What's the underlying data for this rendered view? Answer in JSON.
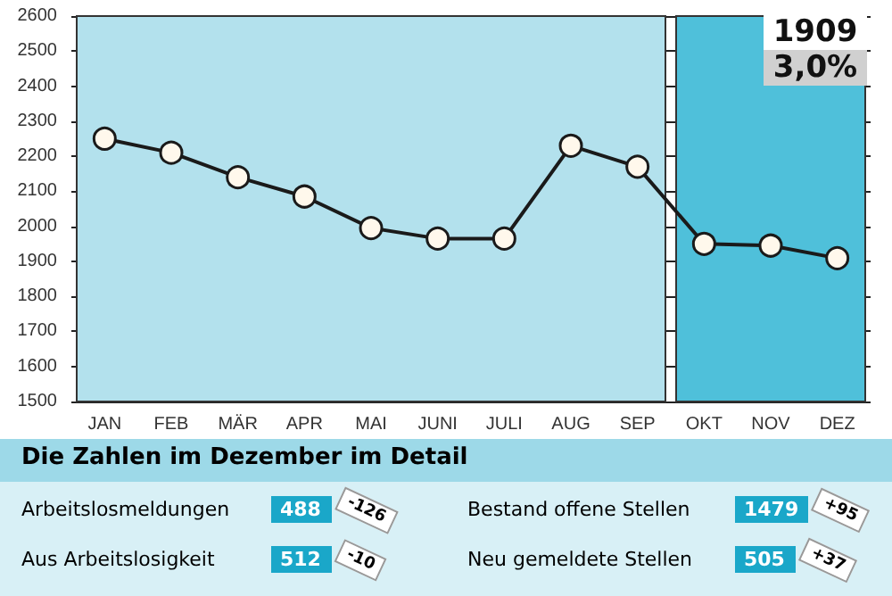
{
  "chart_data": [
    {
      "type": "line",
      "categories": [
        "JAN",
        "FEB",
        "MÄR",
        "APR",
        "MAI",
        "JUNI",
        "JULI",
        "AUG",
        "SEP",
        "OKT",
        "NOV",
        "DEZ"
      ],
      "series": [
        {
          "color": "#1a1a1a",
          "values": [
            2250,
            2210,
            2140,
            2085,
            1995,
            1965,
            1965,
            2230,
            2170,
            1950,
            1945,
            1909
          ]
        }
      ],
      "ylim": [
        1500,
        2600
      ],
      "yticks": [
        1500,
        1600,
        1700,
        1800,
        1900,
        2000,
        2100,
        2200,
        2300,
        2400,
        2500,
        2600
      ],
      "grid": "y",
      "marker": "circle",
      "bands": [
        {
          "axis": "x",
          "from": "JAN",
          "to": "SEP",
          "color": "#b3e1ed"
        },
        {
          "axis": "x",
          "from": "OKT",
          "to": "DEZ",
          "color": "#4fc0da"
        }
      ],
      "annotations": [
        "1909",
        "3,0%"
      ]
    },
    {
      "type": "other",
      "title": "Die Zahlen im Dezember im Detail",
      "annotations": [
        "Arbeitslosmeldungen",
        "488",
        "-126",
        "Bestand offene Stellen",
        "1479",
        "+95",
        "Aus Arbeitslosigkeit",
        "512",
        "-10",
        "Neu gemeldete Stellen",
        "505",
        "+37"
      ]
    }
  ]
}
